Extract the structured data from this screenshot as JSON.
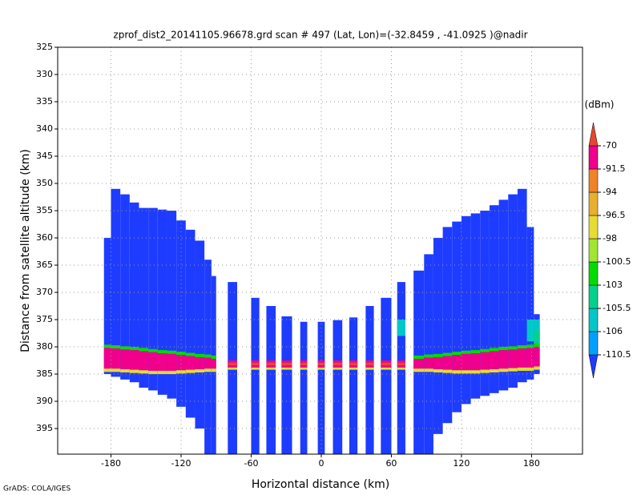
{
  "chart_data": {
    "type": "heatmap",
    "title": "zprof_dist2_20141105.96678.grd  scan # 497  (Lat, Lon)=(-32.8459 , -41.0925 )@nadir",
    "x_label": "Horizontal distance (km)",
    "y_label": "Distance from satellite altitude (km)",
    "credit": "GrADS: COLA/IGES",
    "xlim": [
      -225.6,
      223.6
    ],
    "xticks": [
      -180,
      -120,
      -60,
      0,
      60,
      120,
      180
    ],
    "ylim": [
      399.7,
      325
    ],
    "yticks": [
      325,
      330,
      335,
      340,
      345,
      350,
      355,
      360,
      365,
      370,
      375,
      380,
      385,
      390,
      395
    ],
    "grid": true,
    "colorbar": {
      "label": "(dBm)",
      "levels": [
        -110.5,
        -106,
        -105.5,
        -103,
        -100.5,
        -98,
        -96.5,
        -94,
        -91.5,
        -70
      ],
      "colors": [
        "#1e3cff",
        "#00a0ff",
        "#00c8c8",
        "#00d28c",
        "#00dc00",
        "#a0e632",
        "#e6dc32",
        "#e6af2d",
        "#f08228",
        "#f0008c",
        "#e6462d"
      ]
    },
    "cells": [
      [
        -186,
        -180,
        360,
        385,
        -115
      ],
      [
        -186,
        -180,
        379.6,
        380.2,
        -101.5
      ],
      [
        -186,
        -180,
        380.2,
        384,
        -85
      ],
      [
        -186,
        -180,
        384,
        384.6,
        -97
      ],
      [
        -180,
        -172,
        351,
        385.5,
        -115
      ],
      [
        -180,
        -172,
        379.7,
        380.3,
        -101.5
      ],
      [
        -180,
        -172,
        380.3,
        384,
        -85
      ],
      [
        -180,
        -172,
        384,
        384.6,
        -97
      ],
      [
        -172,
        -164,
        352,
        386,
        -115
      ],
      [
        -172,
        -164,
        379.9,
        380.5,
        -101.5
      ],
      [
        -172,
        -164,
        380.5,
        384.1,
        -85
      ],
      [
        -172,
        -164,
        384.1,
        384.7,
        -97
      ],
      [
        -164,
        -156,
        353.5,
        386.5,
        -115
      ],
      [
        -164,
        -156,
        380,
        380.6,
        -101.5
      ],
      [
        -164,
        -156,
        380.6,
        384.2,
        -85
      ],
      [
        -164,
        -156,
        384.2,
        384.8,
        -97
      ],
      [
        -156,
        -148,
        354.5,
        387.5,
        -115
      ],
      [
        -156,
        -148,
        380.2,
        380.8,
        -101.5
      ],
      [
        -156,
        -148,
        380.8,
        384.3,
        -85
      ],
      [
        -156,
        -148,
        384.3,
        384.9,
        -97
      ],
      [
        -148,
        -140,
        354.5,
        388,
        -115
      ],
      [
        -148,
        -140,
        380.4,
        381,
        -101.5
      ],
      [
        -148,
        -140,
        381,
        384.4,
        -85
      ],
      [
        -148,
        -140,
        384.4,
        385,
        -97
      ],
      [
        -140,
        -132,
        354.8,
        388.8,
        -115
      ],
      [
        -140,
        -132,
        380.6,
        381.2,
        -101.5
      ],
      [
        -140,
        -132,
        381.2,
        384.4,
        -85
      ],
      [
        -140,
        -132,
        384.4,
        385,
        -97
      ],
      [
        -132,
        -124,
        355,
        389.5,
        -115
      ],
      [
        -132,
        -124,
        380.7,
        381.3,
        -101.5
      ],
      [
        -132,
        -124,
        381.3,
        384.4,
        -85
      ],
      [
        -132,
        -124,
        384.4,
        385,
        -97
      ],
      [
        -124,
        -116,
        356.8,
        391,
        -115
      ],
      [
        -124,
        -116,
        380.9,
        381.5,
        -101.5
      ],
      [
        -124,
        -116,
        381.5,
        384.3,
        -85
      ],
      [
        -124,
        -116,
        384.3,
        384.9,
        -97
      ],
      [
        -116,
        -108,
        358.5,
        393,
        -115
      ],
      [
        -116,
        -108,
        381.1,
        381.7,
        -101.5
      ],
      [
        -116,
        -108,
        381.7,
        384.2,
        -85
      ],
      [
        -116,
        -108,
        384.2,
        384.8,
        -97
      ],
      [
        -108,
        -100,
        360.5,
        395,
        -115
      ],
      [
        -108,
        -100,
        381.3,
        381.9,
        -101.5
      ],
      [
        -108,
        -100,
        381.9,
        384.1,
        -85
      ],
      [
        -108,
        -100,
        384.1,
        384.7,
        -97
      ],
      [
        -100,
        -94,
        364,
        399.7,
        -115
      ],
      [
        -100,
        -94,
        381.4,
        382,
        -101.5
      ],
      [
        -100,
        -94,
        382,
        384,
        -85
      ],
      [
        -100,
        -94,
        384,
        384.6,
        -97
      ],
      [
        -94,
        -90,
        367,
        399.7,
        -115
      ],
      [
        -94,
        -90,
        381.6,
        382.2,
        -101.5
      ],
      [
        -94,
        -90,
        382.2,
        384,
        -85
      ],
      [
        -94,
        -90,
        384,
        384.6,
        -97
      ],
      [
        -80,
        -72,
        368.1,
        399.7,
        -115
      ],
      [
        -80,
        -72,
        382.5,
        383.8,
        -85
      ],
      [
        -80,
        -72,
        382.9,
        383.4,
        -65
      ],
      [
        -80,
        -72,
        383.8,
        384.2,
        -97
      ],
      [
        -60,
        -53,
        371,
        399.7,
        -115
      ],
      [
        -60,
        -53,
        382.5,
        383.8,
        -85
      ],
      [
        -60,
        -53,
        382.9,
        383.4,
        -65
      ],
      [
        -60,
        -53,
        383.8,
        384.2,
        -97
      ],
      [
        -47,
        -39,
        372.5,
        399.7,
        -115
      ],
      [
        -47,
        -39,
        382.5,
        383.8,
        -85
      ],
      [
        -47,
        -39,
        382.9,
        383.4,
        -65
      ],
      [
        -47,
        -39,
        383.8,
        384.2,
        -97
      ],
      [
        -34,
        -25,
        374.4,
        399.7,
        -115
      ],
      [
        -34,
        -25,
        382.5,
        383.8,
        -85
      ],
      [
        -34,
        -25,
        382.9,
        383.4,
        -65
      ],
      [
        -34,
        -25,
        383.8,
        384.2,
        -97
      ],
      [
        -18,
        -12,
        375.4,
        399.7,
        -115
      ],
      [
        -18,
        -12,
        382.5,
        383.8,
        -85
      ],
      [
        -18,
        -12,
        382.9,
        383.4,
        -65
      ],
      [
        -18,
        -12,
        383.8,
        384.2,
        -97
      ],
      [
        -3,
        3,
        375.4,
        399.7,
        -115
      ],
      [
        -3,
        3,
        382.5,
        383.8,
        -85
      ],
      [
        -3,
        3,
        382.9,
        383.4,
        -65
      ],
      [
        -3,
        3,
        383.8,
        384.2,
        -97
      ],
      [
        10,
        18,
        375.1,
        399.7,
        -115
      ],
      [
        10,
        18,
        382.5,
        383.8,
        -85
      ],
      [
        10,
        18,
        382.9,
        383.4,
        -65
      ],
      [
        10,
        18,
        383.8,
        384.2,
        -97
      ],
      [
        24,
        31,
        374.6,
        399.7,
        -115
      ],
      [
        24,
        31,
        382.5,
        383.8,
        -85
      ],
      [
        24,
        31,
        382.9,
        383.4,
        -65
      ],
      [
        24,
        31,
        383.8,
        384.2,
        -97
      ],
      [
        38,
        45,
        372.5,
        399.7,
        -115
      ],
      [
        38,
        45,
        382.5,
        383.8,
        -85
      ],
      [
        38,
        45,
        382.9,
        383.4,
        -65
      ],
      [
        38,
        45,
        383.8,
        384.2,
        -97
      ],
      [
        51,
        60,
        371,
        399.7,
        -115
      ],
      [
        51,
        60,
        382.5,
        383.8,
        -85
      ],
      [
        51,
        60,
        382.9,
        383.4,
        -65
      ],
      [
        51,
        60,
        383.8,
        384.2,
        -97
      ],
      [
        65,
        72,
        368.1,
        399.7,
        -115
      ],
      [
        65,
        72,
        382.5,
        383.8,
        -85
      ],
      [
        65,
        72,
        382.9,
        383.4,
        -65
      ],
      [
        65,
        72,
        383.8,
        384.2,
        -97
      ],
      [
        65,
        72,
        375,
        378,
        -105.8
      ],
      [
        79,
        88,
        366,
        399.7,
        -115
      ],
      [
        79,
        88,
        381.6,
        382.2,
        -101.5
      ],
      [
        79,
        88,
        382.2,
        384,
        -85
      ],
      [
        79,
        88,
        384,
        384.6,
        -97
      ],
      [
        88,
        96,
        363,
        399.7,
        -115
      ],
      [
        88,
        96,
        381.4,
        382,
        -101.5
      ],
      [
        88,
        96,
        382,
        384,
        -85
      ],
      [
        88,
        96,
        384,
        384.6,
        -97
      ],
      [
        96,
        104,
        360,
        396,
        -115
      ],
      [
        96,
        104,
        381.3,
        381.9,
        -101.5
      ],
      [
        96,
        104,
        381.9,
        384.1,
        -85
      ],
      [
        96,
        104,
        384.1,
        384.7,
        -97
      ],
      [
        104,
        112,
        358,
        394,
        -115
      ],
      [
        104,
        112,
        381.1,
        381.7,
        -101.5
      ],
      [
        104,
        112,
        381.7,
        384.2,
        -85
      ],
      [
        104,
        112,
        384.2,
        384.8,
        -97
      ],
      [
        112,
        120,
        357,
        392,
        -115
      ],
      [
        112,
        120,
        380.9,
        381.5,
        -101.5
      ],
      [
        112,
        120,
        381.5,
        384.3,
        -85
      ],
      [
        112,
        120,
        384.3,
        384.9,
        -97
      ],
      [
        120,
        128,
        356,
        390.5,
        -115
      ],
      [
        120,
        128,
        380.7,
        381.3,
        -101.5
      ],
      [
        120,
        128,
        381.3,
        384.3,
        -85
      ],
      [
        120,
        128,
        384.3,
        384.9,
        -97
      ],
      [
        128,
        136,
        355.5,
        389.5,
        -115
      ],
      [
        128,
        136,
        380.6,
        381.2,
        -101.5
      ],
      [
        128,
        136,
        381.2,
        384.3,
        -85
      ],
      [
        128,
        136,
        384.3,
        384.9,
        -97
      ],
      [
        136,
        144,
        355,
        389,
        -115
      ],
      [
        136,
        144,
        380.4,
        381,
        -101.5
      ],
      [
        136,
        144,
        381,
        384.2,
        -85
      ],
      [
        136,
        144,
        384.2,
        384.8,
        -97
      ],
      [
        144,
        152,
        354,
        388.5,
        -115
      ],
      [
        144,
        152,
        380.2,
        380.8,
        -101.5
      ],
      [
        144,
        152,
        380.8,
        384.1,
        -85
      ],
      [
        144,
        152,
        384.1,
        384.7,
        -97
      ],
      [
        152,
        160,
        353,
        388,
        -115
      ],
      [
        152,
        160,
        380,
        380.6,
        -101.5
      ],
      [
        152,
        160,
        380.6,
        384,
        -85
      ],
      [
        152,
        160,
        384,
        384.6,
        -97
      ],
      [
        160,
        168,
        352,
        387.5,
        -115
      ],
      [
        160,
        168,
        379.9,
        380.5,
        -101.5
      ],
      [
        160,
        168,
        380.5,
        383.9,
        -85
      ],
      [
        160,
        168,
        383.9,
        384.5,
        -97
      ],
      [
        168,
        176,
        351,
        386.5,
        -115
      ],
      [
        168,
        176,
        379.7,
        380.3,
        -101.5
      ],
      [
        168,
        176,
        380.3,
        383.8,
        -85
      ],
      [
        168,
        176,
        383.8,
        384.4,
        -97
      ],
      [
        176,
        182,
        358,
        386,
        -115
      ],
      [
        176,
        182,
        379.6,
        380.2,
        -101.5
      ],
      [
        176,
        182,
        380.2,
        383.8,
        -85
      ],
      [
        176,
        182,
        383.8,
        384.4,
        -97
      ],
      [
        182,
        187,
        374,
        385,
        -115
      ],
      [
        182,
        187,
        379.4,
        380,
        -101.5
      ],
      [
        182,
        187,
        380,
        383.6,
        -85
      ],
      [
        182,
        187,
        383.6,
        384.2,
        -97
      ],
      [
        176,
        187,
        375,
        379,
        -105.8
      ],
      [
        182,
        187,
        377,
        379.4,
        -103.5
      ]
    ]
  }
}
